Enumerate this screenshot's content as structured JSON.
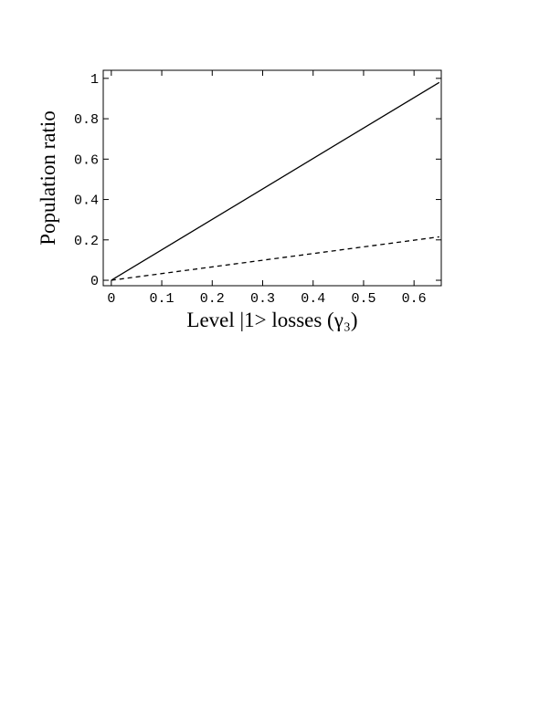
{
  "chart_data": {
    "type": "line",
    "x_label": "Level  |1>  losses (γ₃)",
    "y_label": "Population ratio",
    "x": [
      0,
      0.65
    ],
    "series": [
      {
        "color": "#000000",
        "dash": "solid",
        "values": [
          0,
          0.98
        ]
      },
      {
        "color": "#000000",
        "dash": "dashed",
        "values": [
          0,
          0.215
        ]
      }
    ],
    "xlim": [
      -0.016,
      0.654
    ],
    "ylim": [
      -0.027,
      1.04
    ],
    "xticks": [
      0,
      0.1,
      0.2,
      0.3,
      0.4,
      0.5,
      0.6
    ],
    "yticks": [
      0,
      0.2,
      0.4,
      0.6,
      0.8,
      1
    ],
    "grid": false
  }
}
